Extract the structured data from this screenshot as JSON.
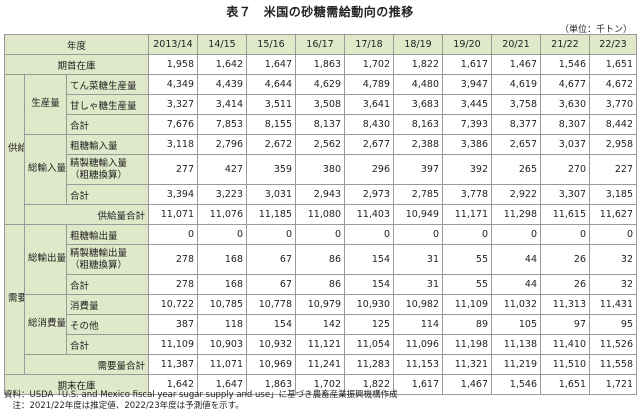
{
  "title": "表７　米国の砂糖需給動向の推移",
  "unit": "（単位：千トン）",
  "header": {
    "year_label": "年度",
    "years": [
      "2013/14",
      "14/15",
      "15/16",
      "16/17",
      "17/18",
      "18/19",
      "19/20",
      "20/21",
      "21/22",
      "22/23"
    ]
  },
  "groups": {
    "supply": "供給",
    "demand": "需要"
  },
  "subgroups": {
    "production": "生産量",
    "imports": "総輸入量",
    "exports": "総輸出量",
    "consumption": "総消費量"
  },
  "rows": {
    "begin_stock": {
      "label": "期首在庫",
      "values": [
        "1,958",
        "1,642",
        "1,647",
        "1,863",
        "1,702",
        "1,822",
        "1,617",
        "1,467",
        "1,546",
        "1,651"
      ]
    },
    "beet": {
      "label": "てん菜糖生産量",
      "values": [
        "4,349",
        "4,439",
        "4,644",
        "4,629",
        "4,789",
        "4,480",
        "3,947",
        "4,619",
        "4,677",
        "4,672"
      ]
    },
    "cane": {
      "label": "甘しゃ糖生産量",
      "values": [
        "3,327",
        "3,414",
        "3,511",
        "3,508",
        "3,641",
        "3,683",
        "3,445",
        "3,758",
        "3,630",
        "3,770"
      ]
    },
    "prod_total": {
      "label": "合計",
      "values": [
        "7,676",
        "7,853",
        "8,155",
        "8,137",
        "8,430",
        "8,163",
        "7,393",
        "8,377",
        "8,307",
        "8,442"
      ]
    },
    "raw_import": {
      "label": "粗糖輸入量",
      "values": [
        "3,118",
        "2,796",
        "2,672",
        "2,562",
        "2,677",
        "2,388",
        "3,386",
        "2,657",
        "3,037",
        "2,958"
      ]
    },
    "refined_import": {
      "label": "精製糖輸入量（粗糖換算）",
      "values": [
        "277",
        "427",
        "359",
        "380",
        "296",
        "397",
        "392",
        "265",
        "270",
        "227"
      ]
    },
    "import_total": {
      "label": "合計",
      "values": [
        "3,394",
        "3,223",
        "3,031",
        "2,943",
        "2,973",
        "2,785",
        "3,778",
        "2,922",
        "3,307",
        "3,185"
      ]
    },
    "supply_total": {
      "label": "供給量合計",
      "values": [
        "11,071",
        "11,076",
        "11,185",
        "11,080",
        "11,403",
        "10,949",
        "11,171",
        "11,298",
        "11,615",
        "11,627"
      ]
    },
    "raw_export": {
      "label": "粗糖輸出量",
      "values": [
        "0",
        "0",
        "0",
        "0",
        "0",
        "0",
        "0",
        "0",
        "0",
        "0"
      ]
    },
    "refined_export": {
      "label": "精製糖輸出量（粗糖換算）",
      "values": [
        "278",
        "168",
        "67",
        "86",
        "154",
        "31",
        "55",
        "44",
        "26",
        "32"
      ]
    },
    "export_total": {
      "label": "合計",
      "values": [
        "278",
        "168",
        "67",
        "86",
        "154",
        "31",
        "55",
        "44",
        "26",
        "32"
      ]
    },
    "consumption": {
      "label": "消費量",
      "values": [
        "10,722",
        "10,785",
        "10,778",
        "10,979",
        "10,930",
        "10,982",
        "11,109",
        "11,032",
        "11,313",
        "11,431"
      ]
    },
    "other": {
      "label": "その他",
      "values": [
        "387",
        "118",
        "154",
        "142",
        "125",
        "114",
        "89",
        "105",
        "97",
        "95"
      ]
    },
    "cons_total": {
      "label": "合計",
      "values": [
        "11,109",
        "10,903",
        "10,932",
        "11,121",
        "11,054",
        "11,096",
        "11,198",
        "11,138",
        "11,410",
        "11,526"
      ]
    },
    "demand_total": {
      "label": "需要量合計",
      "values": [
        "11,387",
        "11,071",
        "10,969",
        "11,241",
        "11,283",
        "11,153",
        "11,321",
        "11,219",
        "11,510",
        "11,558"
      ]
    },
    "end_stock": {
      "label": "期末在庫",
      "values": [
        "1,642",
        "1,647",
        "1,863",
        "1,702",
        "1,822",
        "1,617",
        "1,467",
        "1,546",
        "1,651",
        "1,721"
      ]
    }
  },
  "notes": [
    "資料：USDA「U.S. and Mexico fiscal year sugar supply and use」に基づき農畜産業振興機構作成",
    "　注：2021/22年度は推定値、2022/23年度は予測値を示す。"
  ]
}
